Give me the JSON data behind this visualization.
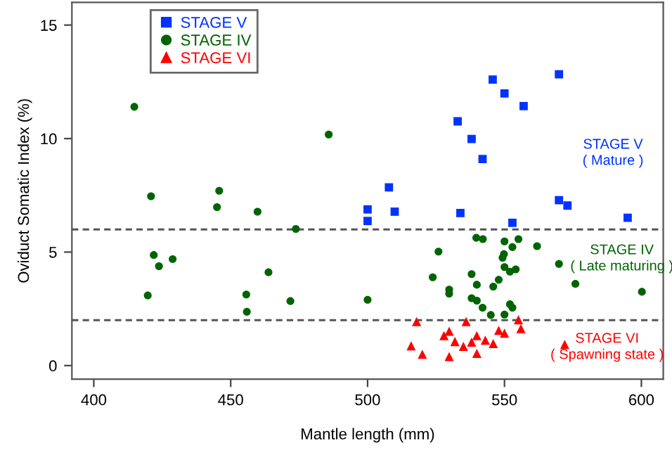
{
  "chart_data": {
    "type": "scatter",
    "xlabel": "Mantle length (mm)",
    "ylabel": "Oviduct Somatic Index (%)",
    "xlim": [
      392,
      608
    ],
    "xticks": [
      400,
      450,
      500,
      550,
      600
    ],
    "ylim": [
      -0.6,
      16
    ],
    "yticks": [
      0,
      5,
      10,
      15
    ],
    "grid": false,
    "legend": "top left",
    "series": [
      {
        "name": "STAGE V",
        "color": "#0033ff",
        "marker": "square",
        "x": [
          545.7,
          569.9,
          550.0,
          557.0,
          532.9,
          538.0,
          542.0,
          507.8,
          500.0,
          500.0,
          509.9,
          533.9,
          552.9,
          569.9,
          573.0,
          595.0
        ],
        "values": [
          12.6,
          12.83,
          11.99,
          11.43,
          10.76,
          9.98,
          9.1,
          7.85,
          6.88,
          6.37,
          6.78,
          6.72,
          6.29,
          7.29,
          7.05,
          6.51
        ]
      },
      {
        "name": "STAGE IV",
        "color": "#006400",
        "marker": "circle",
        "x": [
          414.8,
          485.8,
          420.9,
          445.8,
          445.0,
          459.8,
          473.8,
          421.9,
          423.8,
          428.8,
          419.7,
          455.7,
          471.8,
          455.9,
          463.8,
          500.0,
          539.7,
          542.1,
          550.0,
          555.1,
          552.9,
          561.9,
          525.9,
          549.8,
          549.3,
          569.9,
          550.0,
          552.0,
          554.1,
          538.0,
          523.8,
          547.9,
          575.9,
          539.9,
          545.9,
          529.8,
          529.8,
          600.2,
          538.0,
          539.9,
          542.0,
          552.0,
          552.9,
          545.0,
          550.0
        ],
        "values": [
          11.4,
          10.18,
          7.46,
          7.7,
          6.98,
          6.78,
          6.02,
          4.87,
          4.38,
          4.69,
          3.09,
          3.13,
          2.84,
          2.37,
          4.11,
          2.9,
          5.63,
          5.57,
          5.47,
          5.57,
          5.22,
          5.26,
          5.02,
          4.91,
          4.75,
          4.48,
          4.34,
          4.14,
          4.24,
          4.03,
          3.89,
          3.78,
          3.6,
          3.56,
          3.48,
          3.35,
          3.17,
          3.25,
          2.97,
          2.86,
          2.55,
          2.7,
          2.55,
          2.23,
          2.25
        ]
      },
      {
        "name": "STAGE VI",
        "color": "#ff0000",
        "marker": "triangle",
        "x": [
          517.9,
          536.0,
          555.1,
          556.0,
          547.9,
          550.0,
          529.8,
          527.9,
          539.9,
          531.9,
          538.0,
          543.0,
          545.9,
          535.0,
          515.9,
          520.0,
          529.8,
          539.9,
          572.0
        ],
        "values": [
          1.94,
          1.94,
          2.02,
          1.63,
          1.55,
          1.43,
          1.51,
          1.32,
          1.32,
          1.06,
          1.03,
          1.12,
          0.97,
          0.85,
          0.87,
          0.5,
          0.4,
          0.54,
          0.93
        ]
      }
    ],
    "ref_lines": [
      {
        "axis": "y",
        "value": 6,
        "color": "#555555",
        "line_style": "dashed"
      },
      {
        "axis": "y",
        "value": 2,
        "color": "#555555",
        "line_style": "dashed"
      }
    ],
    "annotations": [
      "STAGE V\n( Mature )",
      "STAGE IV\n( Late maturing )",
      "STAGE VI\n( Spawning state )"
    ]
  }
}
